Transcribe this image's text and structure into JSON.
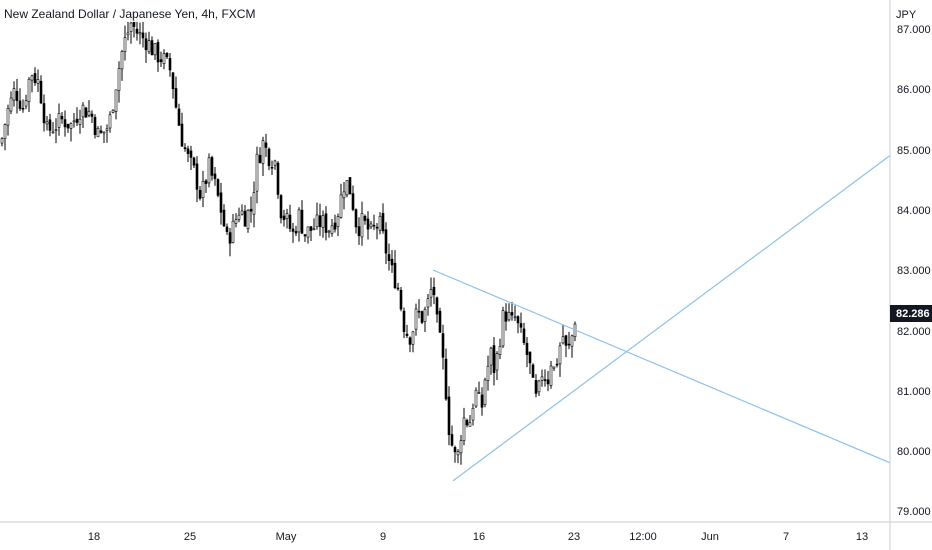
{
  "header": {
    "title": "New Zealand Dollar / Japanese Yen, 4h, FXCM"
  },
  "currency": "JPY",
  "last_price": "82.286",
  "colors": {
    "candle": "#000000",
    "trendline": "#8ec1ec",
    "axis_line": "#c9cbd1",
    "price_tag": "#131722"
  },
  "chart_data": {
    "type": "candlestick",
    "title": "New Zealand Dollar / Japanese Yen, 4h, FXCM",
    "ylabel": "JPY",
    "ylim": [
      78.8,
      87.3
    ],
    "y_ticks": [
      "87.000",
      "86.000",
      "85.000",
      "84.000",
      "83.000",
      "82.000",
      "81.000",
      "80.000",
      "79.000"
    ],
    "x_ticks": [
      "18",
      "25",
      "May",
      "9",
      "16",
      "23",
      "12:00",
      "Jun",
      "7",
      "13"
    ],
    "close_path": [
      [
        0,
        85.1
      ],
      [
        6,
        85.6
      ],
      [
        14,
        86.0
      ],
      [
        22,
        85.7
      ],
      [
        30,
        86.3
      ],
      [
        38,
        86.1
      ],
      [
        46,
        85.3
      ],
      [
        54,
        85.4
      ],
      [
        62,
        85.5
      ],
      [
        70,
        85.4
      ],
      [
        80,
        85.7
      ],
      [
        90,
        85.6
      ],
      [
        98,
        85.2
      ],
      [
        108,
        85.4
      ],
      [
        116,
        86.2
      ],
      [
        122,
        86.7
      ],
      [
        130,
        87.1
      ],
      [
        138,
        86.9
      ],
      [
        146,
        86.8
      ],
      [
        154,
        86.6
      ],
      [
        162,
        86.5
      ],
      [
        170,
        86.3
      ],
      [
        176,
        85.6
      ],
      [
        182,
        85.1
      ],
      [
        188,
        84.8
      ],
      [
        194,
        84.6
      ],
      [
        200,
        84.2
      ],
      [
        208,
        84.7
      ],
      [
        214,
        84.4
      ],
      [
        220,
        84.0
      ],
      [
        226,
        83.5
      ],
      [
        232,
        83.7
      ],
      [
        238,
        84.0
      ],
      [
        244,
        83.9
      ],
      [
        250,
        84.0
      ],
      [
        256,
        84.8
      ],
      [
        262,
        85.1
      ],
      [
        268,
        84.9
      ],
      [
        274,
        84.8
      ],
      [
        280,
        84.0
      ],
      [
        286,
        83.8
      ],
      [
        292,
        83.6
      ],
      [
        298,
        83.9
      ],
      [
        304,
        83.6
      ],
      [
        312,
        83.7
      ],
      [
        320,
        83.8
      ],
      [
        328,
        83.7
      ],
      [
        336,
        83.9
      ],
      [
        344,
        84.5
      ],
      [
        350,
        84.3
      ],
      [
        356,
        83.7
      ],
      [
        362,
        83.8
      ],
      [
        370,
        83.6
      ],
      [
        378,
        83.8
      ],
      [
        384,
        83.4
      ],
      [
        390,
        83.0
      ],
      [
        396,
        82.8
      ],
      [
        400,
        82.4
      ],
      [
        404,
        82.0
      ],
      [
        410,
        81.9
      ],
      [
        416,
        82.3
      ],
      [
        422,
        82.2
      ],
      [
        428,
        82.5
      ],
      [
        432,
        82.8
      ],
      [
        436,
        82.1
      ],
      [
        440,
        81.7
      ],
      [
        444,
        81.2
      ],
      [
        448,
        80.4
      ],
      [
        452,
        80.0
      ],
      [
        456,
        79.8
      ],
      [
        460,
        80.3
      ],
      [
        464,
        80.6
      ],
      [
        468,
        80.4
      ],
      [
        472,
        80.8
      ],
      [
        476,
        81.0
      ],
      [
        480,
        80.6
      ],
      [
        484,
        81.2
      ],
      [
        490,
        81.6
      ],
      [
        494,
        81.3
      ],
      [
        498,
        81.8
      ],
      [
        502,
        82.2
      ],
      [
        506,
        82.3
      ],
      [
        510,
        82.1
      ],
      [
        514,
        82.2
      ],
      [
        518,
        82.0
      ],
      [
        522,
        81.8
      ],
      [
        526,
        81.6
      ],
      [
        530,
        81.3
      ],
      [
        534,
        80.8
      ],
      [
        538,
        81.0
      ],
      [
        542,
        81.4
      ],
      [
        546,
        81.1
      ],
      [
        550,
        81.5
      ],
      [
        554,
        81.3
      ],
      [
        558,
        81.7
      ],
      [
        562,
        81.9
      ],
      [
        566,
        81.6
      ],
      [
        570,
        81.8
      ],
      [
        574,
        82.2
      ],
      [
        576,
        82.3
      ]
    ],
    "trendlines": [
      {
        "name": "",
        "start": {
          "x": 433,
          "y": 83.0
        },
        "end": {
          "x": 890,
          "y": 79.8
        }
      },
      {
        "name": "",
        "start": {
          "x": 453,
          "y": 79.5
        },
        "end": {
          "x": 890,
          "y": 84.9
        }
      }
    ]
  }
}
